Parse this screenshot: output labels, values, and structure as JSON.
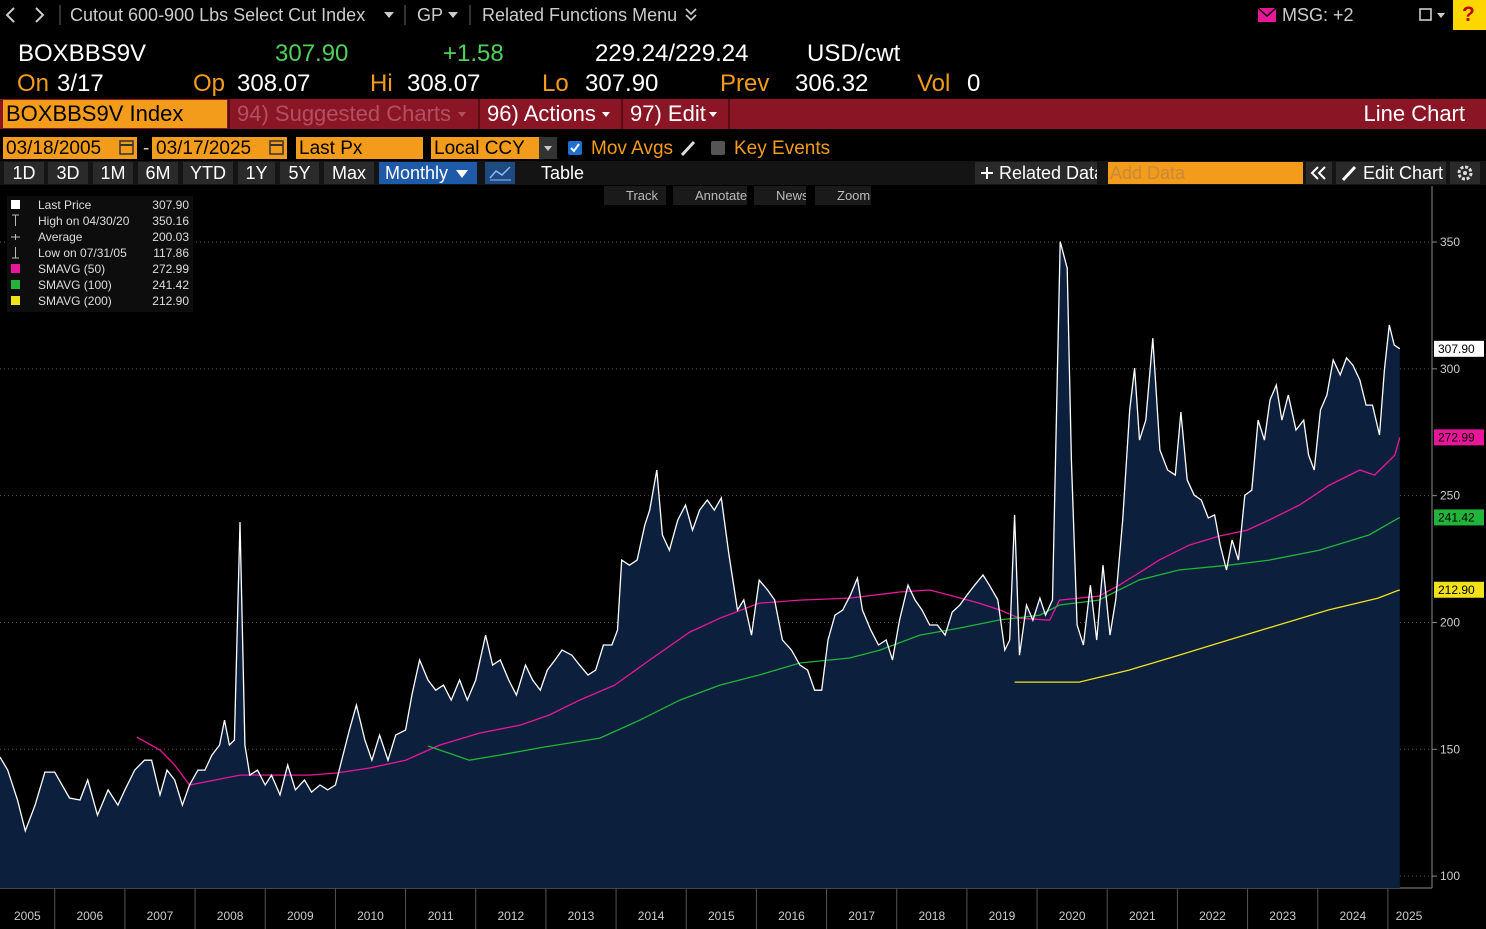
{
  "toolbar": {
    "title": "Cutout 600-900 Lbs Select Cut Index",
    "source": "GP",
    "related": "Related Functions Menu",
    "msg": "MSG: +2",
    "help": "?"
  },
  "quote": {
    "ticker": "BOXBBS9V",
    "last": "307.90",
    "change": "+1.58",
    "bid_ask": "229.24/229.24",
    "units": "USD/cwt",
    "on_label": "On",
    "on": "3/17",
    "open_label": "Op",
    "open": "308.07",
    "high_label": "Hi",
    "high": "308.07",
    "low_label": "Lo",
    "low": "307.90",
    "prev_label": "Prev",
    "prev": "306.32",
    "vol_label": "Vol",
    "vol": "0"
  },
  "menu": {
    "security": "BOXBBS9V Index",
    "suggested": "94) Suggested Charts",
    "actions": "96) Actions",
    "edit": "97) Edit",
    "chart_type": "Line Chart"
  },
  "controls": {
    "start": "03/18/2005",
    "range_sep": "-",
    "end": "03/17/2025",
    "field": "Last Px",
    "currency": "Local CCY",
    "mov_avgs": "Mov Avgs",
    "key_events": "Key Events",
    "periods": [
      "1D",
      "3D",
      "1M",
      "6M",
      "YTD",
      "1Y",
      "5Y",
      "Max"
    ],
    "frequency": "Monthly",
    "table": "Table",
    "related_data": "Related Data",
    "add_data": "Add Data",
    "edit_chart": "Edit Chart"
  },
  "chart_tools": [
    "Track",
    "Annotate",
    "News",
    "Zoom"
  ],
  "chart_data": {
    "type": "line",
    "xlim": [
      2005.22,
      2025.6
    ],
    "ylim": [
      95.3,
      372.1
    ],
    "xticks": [
      2005,
      2006,
      2007,
      2008,
      2009,
      2010,
      2011,
      2012,
      2013,
      2014,
      2015,
      2016,
      2017,
      2018,
      2019,
      2020,
      2021,
      2022,
      2023,
      2024,
      2025
    ],
    "yticks": [
      100,
      150,
      200,
      250,
      300,
      350
    ],
    "grid": true,
    "stats": [
      {
        "label": "High on 04/30/20",
        "value": "350.16"
      },
      {
        "label": "Average",
        "value": "200.03"
      },
      {
        "label": "Low on 07/31/05",
        "value": "117.86"
      }
    ],
    "series": [
      {
        "name": "Last Price",
        "color": "#ffffff",
        "fill": "#0c1f3c",
        "value_label": "307.90",
        "x": [
          2005.22,
          2005.33,
          2005.47,
          2005.58,
          2005.72,
          2005.86,
          2006.0,
          2006.21,
          2006.36,
          2006.47,
          2006.61,
          2006.76,
          2006.9,
          2007.0,
          2007.14,
          2007.28,
          2007.38,
          2007.5,
          2007.6,
          2007.71,
          2007.82,
          2007.92,
          2008.04,
          2008.14,
          2008.24,
          2008.35,
          2008.42,
          2008.49,
          2008.56,
          2008.64,
          2008.71,
          2008.78,
          2008.89,
          2009.0,
          2009.09,
          2009.21,
          2009.32,
          2009.43,
          2009.56,
          2009.66,
          2009.78,
          2009.89,
          2010.0,
          2010.09,
          2010.2,
          2010.3,
          2010.42,
          2010.52,
          2010.63,
          2010.75,
          2010.86,
          2011.0,
          2011.09,
          2011.2,
          2011.32,
          2011.43,
          2011.54,
          2011.65,
          2011.77,
          2011.88,
          2012.0,
          2012.14,
          2012.24,
          2012.35,
          2012.47,
          2012.58,
          2012.71,
          2012.81,
          2012.92,
          2013.02,
          2013.13,
          2013.23,
          2013.37,
          2013.48,
          2013.6,
          2013.71,
          2013.82,
          2013.94,
          2014.02,
          2014.08,
          2014.19,
          2014.3,
          2014.41,
          2014.48,
          2014.58,
          2014.66,
          2014.76,
          2014.88,
          2014.99,
          2015.09,
          2015.19,
          2015.3,
          2015.4,
          2015.5,
          2015.61,
          2015.73,
          2015.82,
          2015.93,
          2016.04,
          2016.16,
          2016.26,
          2016.37,
          2016.5,
          2016.62,
          2016.73,
          2016.83,
          2016.93,
          2017.02,
          2017.12,
          2017.23,
          2017.34,
          2017.44,
          2017.51,
          2017.63,
          2017.74,
          2017.85,
          2017.94,
          2018.04,
          2018.16,
          2018.26,
          2018.36,
          2018.47,
          2018.58,
          2018.69,
          2018.79,
          2018.9,
          2019.0,
          2019.11,
          2019.23,
          2019.32,
          2019.44,
          2019.54,
          2019.61,
          2019.68,
          2019.75,
          2019.85,
          2019.94,
          2020.04,
          2020.12,
          2020.22,
          2020.33,
          2020.43,
          2020.49,
          2020.57,
          2020.66,
          2020.76,
          2020.85,
          2020.94,
          2021.04,
          2021.12,
          2021.22,
          2021.32,
          2021.39,
          2021.46,
          2021.55,
          2021.65,
          2021.75,
          2021.86,
          2021.97,
          2022.05,
          2022.14,
          2022.24,
          2022.34,
          2022.44,
          2022.53,
          2022.61,
          2022.7,
          2022.78,
          2022.87,
          2022.96,
          2023.06,
          2023.15,
          2023.24,
          2023.32,
          2023.41,
          2023.49,
          2023.58,
          2023.69,
          2023.8,
          2023.87,
          2023.95,
          2024.04,
          2024.13,
          2024.22,
          2024.32,
          2024.41,
          2024.5,
          2024.6,
          2024.69,
          2024.78,
          2024.88,
          2024.95,
          2025.02,
          2025.09,
          2025.17
        ],
        "values": [
          146.9,
          141.8,
          130,
          117.86,
          128,
          141,
          141,
          130.8,
          130,
          137.9,
          124,
          134,
          128,
          134,
          141.8,
          145.7,
          145.7,
          132,
          141.8,
          137.9,
          128,
          135.9,
          141.8,
          141.8,
          147.7,
          151.7,
          161.5,
          151.7,
          153.6,
          239.6,
          151.7,
          139.8,
          141.8,
          135.9,
          139.8,
          132,
          143.8,
          134,
          137.9,
          133.1,
          135.9,
          134,
          135.9,
          145.7,
          157.6,
          167.4,
          153.6,
          145.7,
          155.6,
          145.7,
          155.6,
          157.6,
          171.4,
          185.2,
          177.3,
          173.3,
          175.3,
          169.4,
          177.3,
          169.4,
          177.3,
          195,
          183.2,
          185.2,
          177.3,
          171.4,
          183.2,
          177.3,
          173.3,
          181.2,
          185.2,
          189.1,
          187.1,
          183.2,
          179.3,
          181.2,
          191.1,
          191.1,
          197,
          224.6,
          222.6,
          224.6,
          238.4,
          244.3,
          260.1,
          234.5,
          228.5,
          240.4,
          246.3,
          236.4,
          244.3,
          248.3,
          244.3,
          249.1,
          226.6,
          204.9,
          208.9,
          195,
          216.7,
          212.8,
          208.9,
          193.1,
          189.1,
          183.2,
          181.2,
          173.3,
          173.3,
          193.1,
          202.9,
          204.9,
          210.8,
          217.5,
          204.9,
          197,
          191.1,
          193.1,
          185.2,
          200.9,
          214.7,
          208.9,
          204.9,
          199,
          199,
          195,
          204.1,
          206.9,
          210.8,
          214.7,
          218.7,
          214.7,
          208.9,
          189.1,
          193.1,
          242.4,
          187.1,
          206.9,
          200.9,
          209.6,
          202.9,
          208.9,
          350.16,
          339.7,
          264,
          199,
          191.1,
          214.7,
          193.1,
          222.6,
          195,
          208.9,
          240.4,
          283.8,
          300.3,
          271.9,
          279.8,
          312.1,
          268,
          260.1,
          258.1,
          283,
          256.2,
          250.2,
          248.3,
          241.2,
          242.4,
          230.5,
          220.7,
          232.5,
          224.6,
          250.2,
          252.2,
          279.8,
          271.9,
          287.7,
          293.6,
          279.8,
          289.7,
          275.9,
          279.8,
          266,
          260.1,
          283.8,
          289.7,
          303.5,
          297.6,
          304.3,
          301.5,
          295.6,
          285.7,
          285.7,
          273.9,
          299.5,
          317.3,
          309.4,
          307.9
        ]
      },
      {
        "name": "SMAVG (50)",
        "color": "#e8179a",
        "value_label": "272.99",
        "x": [
          2007.17,
          2007.5,
          2007.71,
          2007.92,
          2008.14,
          2008.64,
          2009.06,
          2009.63,
          2010.0,
          2010.49,
          2011.0,
          2011.49,
          2012.06,
          2012.63,
          2013.05,
          2013.48,
          2013.98,
          2014.48,
          2015.05,
          2015.48,
          2016.04,
          2016.62,
          2017.33,
          2018.04,
          2018.47,
          2018.75,
          2019.18,
          2019.47,
          2019.75,
          2020.18,
          2020.32,
          2020.88,
          2021.17,
          2021.45,
          2021.74,
          2022.17,
          2022.6,
          2022.99,
          2023.31,
          2023.74,
          2024.17,
          2024.6,
          2024.81,
          2025.1,
          2025.17
        ],
        "values": [
          154.8,
          149.7,
          143.8,
          135.9,
          137.1,
          139.8,
          139.8,
          139.8,
          140.6,
          142.6,
          145.7,
          151.7,
          156.4,
          159.5,
          163.5,
          169.4,
          175.3,
          185.2,
          196.2,
          201.7,
          207.6,
          208.8,
          209.6,
          212,
          212.8,
          210.8,
          207.6,
          204.9,
          201.7,
          200.9,
          208.8,
          210.4,
          214.7,
          219.5,
          224.6,
          230.5,
          234.1,
          236.4,
          240.4,
          246.3,
          254.2,
          260.1,
          258.1,
          266,
          272.99
        ]
      },
      {
        "name": "SMAVG (100)",
        "color": "#22b33a",
        "value_label": "241.42",
        "x": [
          2011.32,
          2011.91,
          2012.34,
          2012.98,
          2013.77,
          2014.34,
          2014.91,
          2015.48,
          2016.04,
          2016.62,
          2017.33,
          2017.76,
          2018.33,
          2018.9,
          2019.47,
          2020.04,
          2020.32,
          2020.88,
          2021.45,
          2022.02,
          2022.73,
          2023.31,
          2024.02,
          2024.73,
          2025.17
        ],
        "values": [
          151.3,
          145.7,
          147.7,
          150.9,
          154.4,
          161.5,
          169.4,
          175.3,
          179.3,
          184,
          186,
          189.1,
          195,
          197.8,
          201,
          202.9,
          206.9,
          208.8,
          216.7,
          220.7,
          222.6,
          224.6,
          228.5,
          234.5,
          241.42
        ]
      },
      {
        "name": "SMAVG (200)",
        "color": "#f2e21c",
        "value_label": "212.90",
        "x": [
          2019.68,
          2020.6,
          2021.31,
          2022.02,
          2022.73,
          2023.44,
          2024.15,
          2024.86,
          2025.17
        ],
        "values": [
          176.5,
          176.5,
          181.2,
          187.1,
          193.1,
          199,
          204.9,
          209.6,
          212.9
        ]
      }
    ]
  }
}
